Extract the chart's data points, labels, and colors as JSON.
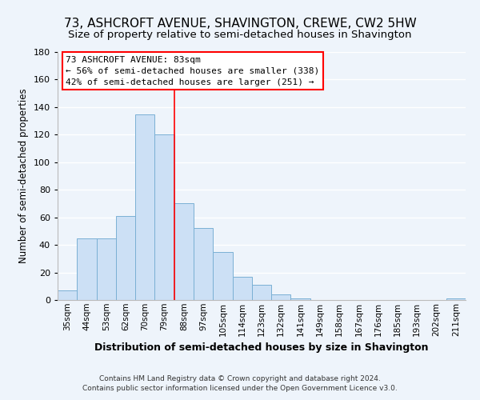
{
  "title": "73, ASHCROFT AVENUE, SHAVINGTON, CREWE, CW2 5HW",
  "subtitle": "Size of property relative to semi-detached houses in Shavington",
  "xlabel": "Distribution of semi-detached houses by size in Shavington",
  "ylabel": "Number of semi-detached properties",
  "bar_color": "#cce0f5",
  "bar_edge_color": "#7ab0d4",
  "categories": [
    "35sqm",
    "44sqm",
    "53sqm",
    "62sqm",
    "70sqm",
    "79sqm",
    "88sqm",
    "97sqm",
    "105sqm",
    "114sqm",
    "123sqm",
    "132sqm",
    "141sqm",
    "149sqm",
    "158sqm",
    "167sqm",
    "176sqm",
    "185sqm",
    "193sqm",
    "202sqm",
    "211sqm"
  ],
  "values": [
    7,
    45,
    45,
    61,
    135,
    120,
    70,
    52,
    35,
    17,
    11,
    4,
    1,
    0,
    0,
    0,
    0,
    0,
    0,
    0,
    1
  ],
  "ylim": [
    0,
    180
  ],
  "yticks": [
    0,
    20,
    40,
    60,
    80,
    100,
    120,
    140,
    160,
    180
  ],
  "property_line_x": 5.5,
  "annotation_title": "73 ASHCROFT AVENUE: 83sqm",
  "annotation_line1": "← 56% of semi-detached houses are smaller (338)",
  "annotation_line2": "42% of semi-detached houses are larger (251) →",
  "footer_line1": "Contains HM Land Registry data © Crown copyright and database right 2024.",
  "footer_line2": "Contains public sector information licensed under the Open Government Licence v3.0.",
  "background_color": "#eef4fb",
  "grid_color": "#ffffff",
  "title_fontsize": 11,
  "subtitle_fontsize": 9.5,
  "tick_fontsize": 7.5,
  "ylabel_fontsize": 8.5,
  "xlabel_fontsize": 9
}
